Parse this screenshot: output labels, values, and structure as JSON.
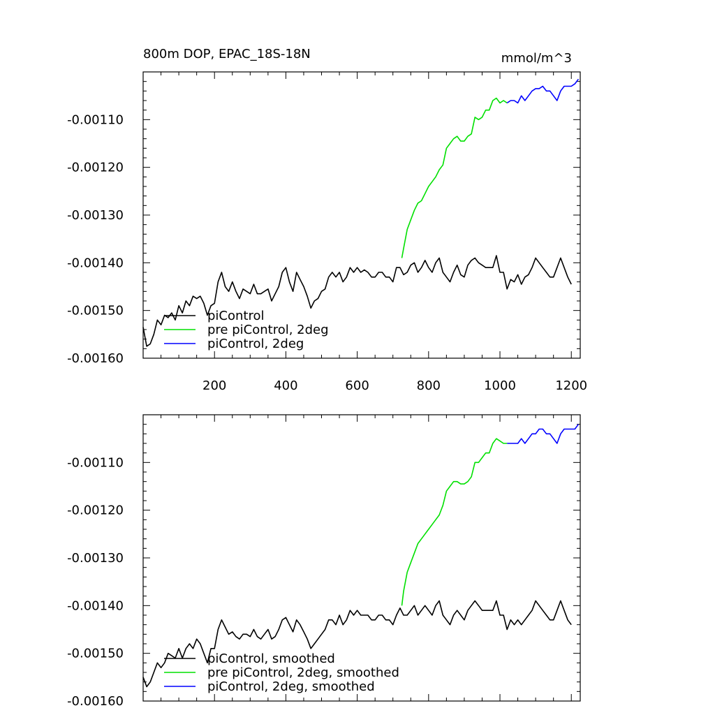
{
  "chart_data": [
    {
      "type": "line",
      "title": "800m DOP, EPAC_18S-18N",
      "units": "mmol/m^3",
      "xlim": [
        0,
        1225
      ],
      "ylim": [
        -0.0016,
        -0.001
      ],
      "x_ticks": [
        200,
        400,
        600,
        800,
        1000,
        1200
      ],
      "y_ticks": [
        -0.0016,
        -0.0015,
        -0.0014,
        -0.0013,
        -0.0012,
        -0.0011
      ],
      "x_tick_labels": [
        "200",
        "400",
        "600",
        "800",
        "1000",
        "1200"
      ],
      "y_tick_labels": [
        "-0.00160",
        "-0.00150",
        "-0.00140",
        "-0.00130",
        "-0.00120",
        "-0.00110"
      ],
      "legend_position": "bottom-left",
      "series": [
        {
          "name": "piControl",
          "color": "#000000",
          "x": [
            0,
            10,
            20,
            30,
            40,
            50,
            60,
            70,
            80,
            90,
            100,
            110,
            120,
            130,
            140,
            150,
            160,
            170,
            180,
            190,
            200,
            210,
            220,
            230,
            240,
            250,
            260,
            270,
            280,
            290,
            300,
            310,
            320,
            330,
            340,
            350,
            360,
            370,
            380,
            390,
            400,
            410,
            420,
            430,
            440,
            450,
            460,
            470,
            480,
            490,
            500,
            510,
            520,
            530,
            540,
            550,
            560,
            570,
            580,
            590,
            600,
            610,
            620,
            630,
            640,
            650,
            660,
            670,
            680,
            690,
            700,
            710,
            720,
            730,
            740,
            750,
            760,
            770,
            780,
            790,
            800,
            810,
            820,
            830,
            840,
            850,
            860,
            870,
            880,
            890,
            900,
            910,
            920,
            930,
            940,
            950,
            960,
            970,
            980,
            990,
            1000,
            1010,
            1020,
            1030,
            1040,
            1050,
            1060,
            1070,
            1080,
            1090,
            1100,
            1110,
            1120,
            1130,
            1140,
            1150,
            1160,
            1170,
            1180,
            1190,
            1200
          ],
          "y": [
            -0.001535,
            -0.001575,
            -0.00157,
            -0.00155,
            -0.00152,
            -0.00153,
            -0.00151,
            -0.001515,
            -0.001505,
            -0.00152,
            -0.00149,
            -0.001505,
            -0.00148,
            -0.00149,
            -0.00147,
            -0.001475,
            -0.00147,
            -0.001485,
            -0.00151,
            -0.00149,
            -0.001485,
            -0.00144,
            -0.00142,
            -0.00145,
            -0.00146,
            -0.00144,
            -0.00146,
            -0.001475,
            -0.001455,
            -0.00146,
            -0.001465,
            -0.001445,
            -0.001465,
            -0.001465,
            -0.00146,
            -0.001455,
            -0.00148,
            -0.001465,
            -0.00145,
            -0.00142,
            -0.00141,
            -0.00144,
            -0.00146,
            -0.00142,
            -0.001435,
            -0.00145,
            -0.00147,
            -0.001495,
            -0.00148,
            -0.001475,
            -0.00146,
            -0.001455,
            -0.00143,
            -0.00142,
            -0.00143,
            -0.00142,
            -0.00144,
            -0.00143,
            -0.00141,
            -0.00142,
            -0.00141,
            -0.00142,
            -0.001415,
            -0.00142,
            -0.00143,
            -0.00143,
            -0.00142,
            -0.00142,
            -0.00143,
            -0.00143,
            -0.00144,
            -0.00141,
            -0.00141,
            -0.001425,
            -0.00142,
            -0.001405,
            -0.0014,
            -0.00142,
            -0.00141,
            -0.001395,
            -0.00141,
            -0.00142,
            -0.0014,
            -0.00139,
            -0.00142,
            -0.00143,
            -0.00144,
            -0.00142,
            -0.001405,
            -0.001425,
            -0.00143,
            -0.001405,
            -0.001395,
            -0.00139,
            -0.0014,
            -0.001405,
            -0.00141,
            -0.00141,
            -0.00141,
            -0.001385,
            -0.00142,
            -0.00142,
            -0.001455,
            -0.001435,
            -0.00144,
            -0.001425,
            -0.001445,
            -0.00143,
            -0.001425,
            -0.00141,
            -0.00139,
            -0.0014,
            -0.00141,
            -0.00142,
            -0.00143,
            -0.00143,
            -0.00141,
            -0.00139,
            -0.00141,
            -0.00143,
            -0.001445
          ]
        },
        {
          "name": "pre piControl, 2deg",
          "color": "#00e000",
          "x": [
            725,
            730,
            740,
            750,
            760,
            770,
            780,
            790,
            800,
            810,
            820,
            830,
            840,
            850,
            860,
            870,
            880,
            890,
            900,
            910,
            920,
            930,
            940,
            950,
            960,
            970,
            980,
            990,
            1000,
            1010,
            1020
          ],
          "y": [
            -0.00139,
            -0.00137,
            -0.00133,
            -0.00131,
            -0.00129,
            -0.001275,
            -0.00127,
            -0.001255,
            -0.00124,
            -0.00123,
            -0.00122,
            -0.001205,
            -0.001195,
            -0.00116,
            -0.00115,
            -0.00114,
            -0.001135,
            -0.001145,
            -0.001145,
            -0.001135,
            -0.00113,
            -0.001095,
            -0.0011,
            -0.001095,
            -0.00108,
            -0.00108,
            -0.00106,
            -0.001055,
            -0.001065,
            -0.00106,
            -0.001065
          ]
        },
        {
          "name": "piControl, 2deg",
          "color": "#0000ff",
          "x": [
            1020,
            1030,
            1040,
            1050,
            1060,
            1070,
            1080,
            1090,
            1100,
            1110,
            1120,
            1130,
            1140,
            1150,
            1160,
            1170,
            1180,
            1190,
            1200,
            1210,
            1220
          ],
          "y": [
            -0.001065,
            -0.00106,
            -0.00106,
            -0.001065,
            -0.00105,
            -0.00106,
            -0.00105,
            -0.00104,
            -0.001035,
            -0.001035,
            -0.00103,
            -0.00104,
            -0.00104,
            -0.00105,
            -0.00106,
            -0.00104,
            -0.00103,
            -0.00103,
            -0.00103,
            -0.001025,
            -0.001015
          ]
        }
      ]
    },
    {
      "type": "line",
      "xlim": [
        0,
        1225
      ],
      "ylim": [
        -0.0016,
        -0.001
      ],
      "x_ticks": [
        200,
        400,
        600,
        800,
        1000,
        1200
      ],
      "y_ticks": [
        -0.0016,
        -0.0015,
        -0.0014,
        -0.0013,
        -0.0012,
        -0.0011
      ],
      "y_tick_labels": [
        "-0.00160",
        "-0.00150",
        "-0.00140",
        "-0.00130",
        "-0.00120",
        "-0.00110"
      ],
      "legend_position": "bottom-left",
      "series": [
        {
          "name": "piControl, smoothed",
          "color": "#000000",
          "x": [
            0,
            10,
            20,
            30,
            40,
            50,
            60,
            70,
            80,
            90,
            100,
            110,
            120,
            130,
            140,
            150,
            160,
            170,
            180,
            190,
            200,
            210,
            220,
            230,
            240,
            250,
            260,
            270,
            280,
            290,
            300,
            310,
            320,
            330,
            340,
            350,
            360,
            370,
            380,
            390,
            400,
            410,
            420,
            430,
            440,
            450,
            460,
            470,
            480,
            490,
            500,
            510,
            520,
            530,
            540,
            550,
            560,
            570,
            580,
            590,
            600,
            610,
            620,
            630,
            640,
            650,
            660,
            670,
            680,
            690,
            700,
            710,
            720,
            730,
            740,
            750,
            760,
            770,
            780,
            790,
            800,
            810,
            820,
            830,
            840,
            850,
            860,
            870,
            880,
            890,
            900,
            910,
            920,
            930,
            940,
            950,
            960,
            970,
            980,
            990,
            1000,
            1010,
            1020,
            1030,
            1040,
            1050,
            1060,
            1070,
            1080,
            1090,
            1100,
            1110,
            1120,
            1130,
            1140,
            1150,
            1160,
            1170,
            1180,
            1190,
            1200
          ],
          "y": [
            -0.00155,
            -0.00157,
            -0.00156,
            -0.00154,
            -0.00152,
            -0.00153,
            -0.00152,
            -0.0015,
            -0.001505,
            -0.00151,
            -0.00149,
            -0.00151,
            -0.00149,
            -0.00148,
            -0.00149,
            -0.00147,
            -0.00148,
            -0.0015,
            -0.00152,
            -0.00149,
            -0.00149,
            -0.00145,
            -0.00143,
            -0.001445,
            -0.00146,
            -0.001455,
            -0.001465,
            -0.00147,
            -0.00146,
            -0.00146,
            -0.001465,
            -0.00145,
            -0.001465,
            -0.00147,
            -0.00146,
            -0.00145,
            -0.00147,
            -0.001465,
            -0.00145,
            -0.00143,
            -0.001425,
            -0.00144,
            -0.001455,
            -0.00143,
            -0.00144,
            -0.001455,
            -0.00147,
            -0.00149,
            -0.00148,
            -0.00147,
            -0.00146,
            -0.00145,
            -0.00143,
            -0.00143,
            -0.00144,
            -0.00142,
            -0.00144,
            -0.00143,
            -0.00141,
            -0.00142,
            -0.00141,
            -0.00142,
            -0.00142,
            -0.00142,
            -0.00143,
            -0.00143,
            -0.00142,
            -0.00142,
            -0.00143,
            -0.00143,
            -0.00144,
            -0.00142,
            -0.001405,
            -0.00142,
            -0.00142,
            -0.00141,
            -0.0014,
            -0.00142,
            -0.00141,
            -0.0014,
            -0.00141,
            -0.00142,
            -0.0014,
            -0.00139,
            -0.00142,
            -0.00143,
            -0.00144,
            -0.00142,
            -0.00141,
            -0.00142,
            -0.00143,
            -0.00141,
            -0.0014,
            -0.00139,
            -0.0014,
            -0.00141,
            -0.00141,
            -0.00141,
            -0.00141,
            -0.00139,
            -0.00142,
            -0.00142,
            -0.00145,
            -0.00143,
            -0.00144,
            -0.00143,
            -0.00144,
            -0.00143,
            -0.00142,
            -0.00141,
            -0.00139,
            -0.0014,
            -0.00141,
            -0.00142,
            -0.00143,
            -0.00143,
            -0.00141,
            -0.00139,
            -0.00141,
            -0.00143,
            -0.00144
          ]
        },
        {
          "name": "pre piControl, 2deg, smoothed",
          "color": "#00e000",
          "x": [
            725,
            730,
            740,
            750,
            760,
            770,
            780,
            790,
            800,
            810,
            820,
            830,
            840,
            850,
            860,
            870,
            880,
            890,
            900,
            910,
            920,
            930,
            940,
            950,
            960,
            970,
            980,
            990,
            1000,
            1010,
            1020
          ],
          "y": [
            -0.0014,
            -0.00137,
            -0.00133,
            -0.00131,
            -0.00129,
            -0.00127,
            -0.00126,
            -0.00125,
            -0.00124,
            -0.00123,
            -0.00122,
            -0.00121,
            -0.00119,
            -0.00116,
            -0.00115,
            -0.00114,
            -0.00114,
            -0.001145,
            -0.001145,
            -0.00114,
            -0.00113,
            -0.0011,
            -0.0011,
            -0.00109,
            -0.00108,
            -0.00108,
            -0.00106,
            -0.00105,
            -0.001055,
            -0.00106,
            -0.00106
          ]
        },
        {
          "name": "piControl, 2deg, smoothed",
          "color": "#0000ff",
          "x": [
            1020,
            1030,
            1040,
            1050,
            1060,
            1070,
            1080,
            1090,
            1100,
            1110,
            1120,
            1130,
            1140,
            1150,
            1160,
            1170,
            1180,
            1190,
            1200,
            1210,
            1220
          ],
          "y": [
            -0.00106,
            -0.00106,
            -0.00106,
            -0.00106,
            -0.00105,
            -0.00106,
            -0.00105,
            -0.00104,
            -0.00104,
            -0.00103,
            -0.00103,
            -0.00104,
            -0.00104,
            -0.00105,
            -0.00106,
            -0.00104,
            -0.00103,
            -0.00103,
            -0.00103,
            -0.00103,
            -0.00102
          ]
        }
      ]
    }
  ]
}
